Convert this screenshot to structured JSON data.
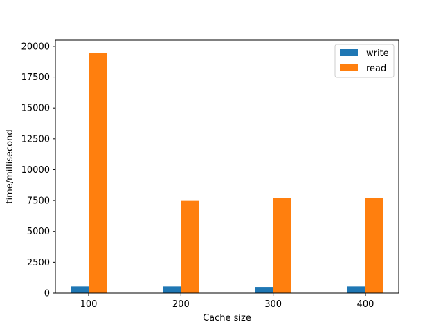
{
  "chart_data": {
    "type": "bar",
    "title": "",
    "xlabel": "Cache size",
    "ylabel": "time/millisecond",
    "categories": [
      "100",
      "200",
      "300",
      "400"
    ],
    "series": [
      {
        "name": "write",
        "color": "#1f77b4",
        "values": [
          540,
          540,
          500,
          540
        ]
      },
      {
        "name": "read",
        "color": "#ff7f0e",
        "values": [
          19480,
          7470,
          7680,
          7730
        ]
      }
    ],
    "ylim": [
      0,
      20500
    ],
    "yticks": [
      0,
      2500,
      5000,
      7500,
      10000,
      12500,
      15000,
      17500,
      20000
    ],
    "grid": false,
    "legend": "top-right"
  }
}
